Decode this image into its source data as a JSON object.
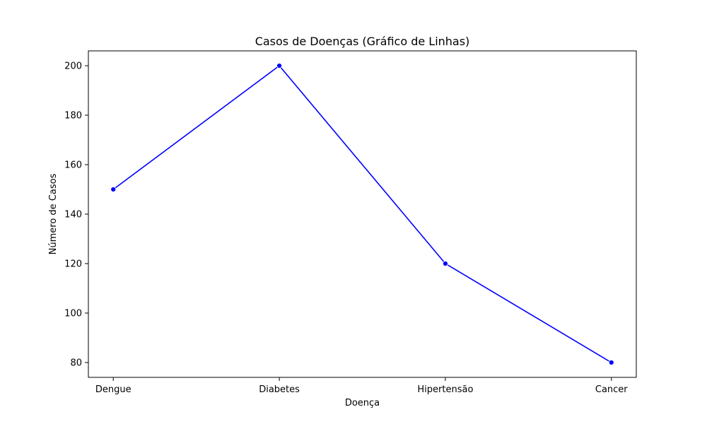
{
  "chart_data": {
    "type": "line",
    "title": "Casos de Doenças (Gráfico de Linhas)",
    "xlabel": "Doença",
    "ylabel": "Número de Casos",
    "categories": [
      "Dengue",
      "Diabetes",
      "Hipertensão",
      "Cancer"
    ],
    "series": [
      {
        "values": [
          150,
          200,
          120,
          80
        ],
        "color": "#0000ff",
        "marker": "circle"
      }
    ],
    "yticks": [
      80,
      100,
      120,
      140,
      160,
      180,
      200
    ],
    "ylim": [
      74.0,
      206.0
    ],
    "grid": false,
    "legend": "none"
  }
}
